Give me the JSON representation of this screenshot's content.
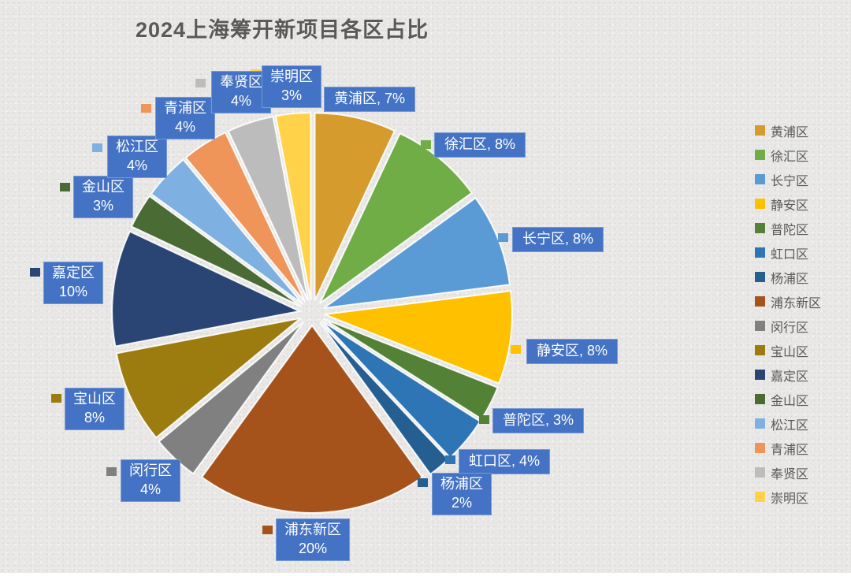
{
  "title": "2024上海筹开新项目各区占比",
  "chart_data": {
    "type": "pie",
    "title": "2024上海筹开新项目各区占比",
    "legend_position": "right",
    "start_angle_deg": 0,
    "direction": "clockwise",
    "exploded": true,
    "categories": [
      "黄浦区",
      "徐汇区",
      "长宁区",
      "静安区",
      "普陀区",
      "虹口区",
      "杨浦区",
      "浦东新区",
      "闵行区",
      "宝山区",
      "嘉定区",
      "金山区",
      "松江区",
      "青浦区",
      "奉贤区",
      "崇明区"
    ],
    "values": [
      7,
      8,
      8,
      8,
      3,
      4,
      2,
      20,
      4,
      8,
      10,
      3,
      4,
      4,
      4,
      3
    ],
    "unit": "%",
    "colors": [
      "#D69B2D",
      "#70AD47",
      "#5B9BD5",
      "#FFC000",
      "#538135",
      "#2E75B6",
      "#255E91",
      "#A5521B",
      "#808080",
      "#9C7B0F",
      "#2A4573",
      "#4A6B34",
      "#7FB0E2",
      "#F0955A",
      "#BCBCBC",
      "#FFD24A"
    ],
    "data_labels": [
      [
        "黄浦区, 7%"
      ],
      [
        "徐汇区, 8%"
      ],
      [
        "长宁区, 8%"
      ],
      [
        "静安区, 8%"
      ],
      [
        "普陀区, 3%"
      ],
      [
        "虹口区, 4%"
      ],
      [
        "杨浦区",
        "2%"
      ],
      [
        "浦东新区",
        "20%"
      ],
      [
        "闵行区",
        "4%"
      ],
      [
        "宝山区",
        "8%"
      ],
      [
        "嘉定区",
        "10%"
      ],
      [
        "金山区",
        "3%"
      ],
      [
        "松江区",
        "4%"
      ],
      [
        "青浦区",
        "4%"
      ],
      [
        "奉贤区",
        "4%"
      ],
      [
        "崇明区",
        "3%"
      ]
    ],
    "legend_items": [
      "黄浦区",
      "徐汇区",
      "长宁区",
      "静安区",
      "普陀区",
      "虹口区",
      "杨浦区",
      "浦东新区",
      "闵行区",
      "宝山区",
      "嘉定区",
      "金山区",
      "松江区",
      "青浦区",
      "奉贤区",
      "崇明区"
    ]
  },
  "style": {
    "label_box_color": "#4472C4",
    "label_text_color": "#FFFFFF",
    "legend_text_color": "#595959",
    "title_color": "#595959",
    "background_color": "#EAE9E7"
  }
}
